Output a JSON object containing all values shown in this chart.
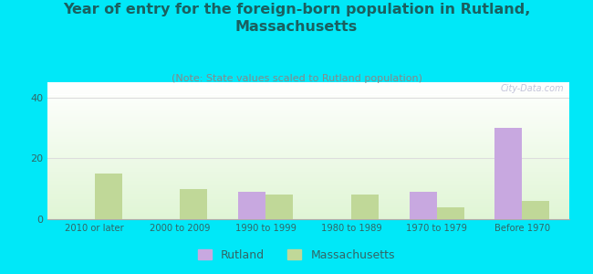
{
  "title": "Year of entry for the foreign-born population in Rutland,\nMassachusetts",
  "subtitle": "(Note: State values scaled to Rutland population)",
  "categories": [
    "2010 or later",
    "2000 to 2009",
    "1990 to 1999",
    "1980 to 1989",
    "1970 to 1979",
    "Before 1970"
  ],
  "rutland_values": [
    0,
    0,
    9,
    0,
    9,
    30
  ],
  "massachusetts_values": [
    15,
    10,
    8,
    8,
    4,
    6
  ],
  "rutland_color": "#c8a8e0",
  "massachusetts_color": "#c0d898",
  "background_color": "#00e8f8",
  "title_color": "#1a6060",
  "subtitle_color": "#888888",
  "tick_color": "#336666",
  "ylim": [
    0,
    45
  ],
  "yticks": [
    0,
    20,
    40
  ],
  "bar_width": 0.32,
  "title_fontsize": 11.5,
  "subtitle_fontsize": 8.0,
  "watermark": "City-Data.com",
  "legend_fontsize": 9
}
